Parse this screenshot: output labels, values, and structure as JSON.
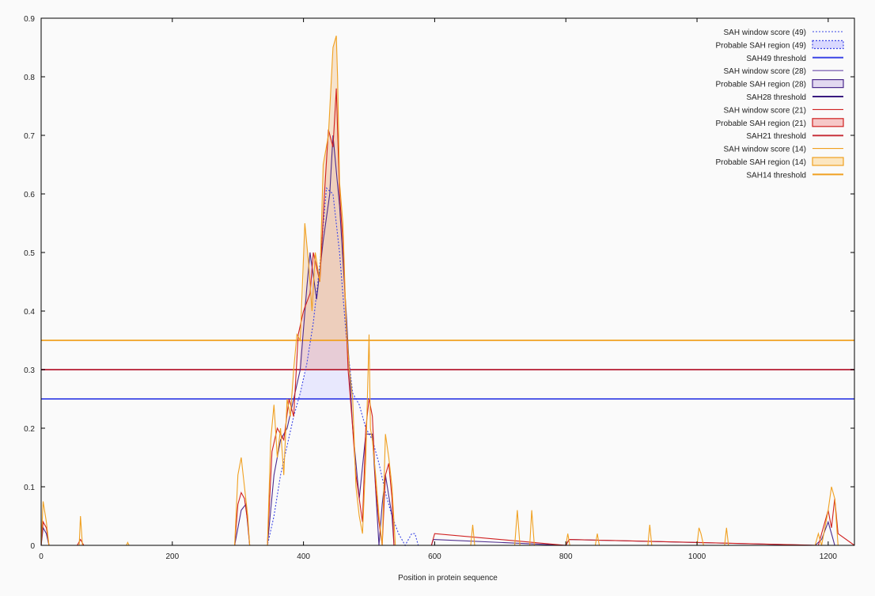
{
  "chart_data": {
    "type": "line",
    "xlabel": "Position in protein sequence",
    "ylabel": "",
    "xlim": [
      0,
      1240
    ],
    "ylim": [
      0,
      0.9
    ],
    "xticks": [
      0,
      200,
      400,
      600,
      800,
      1000,
      1200
    ],
    "yticks": [
      0,
      0.1,
      0.2,
      0.3,
      0.4,
      0.5,
      0.6,
      0.7,
      0.8,
      0.9
    ],
    "grid": false,
    "legend_position": "top-right",
    "thresholds": [
      {
        "name": "SAH49 threshold",
        "value": 0.25,
        "color": "#3b45e6"
      },
      {
        "name": "SAH28 threshold",
        "value": 0.3,
        "color": "#4b2a8c"
      },
      {
        "name": "SAH21 threshold",
        "value": 0.3,
        "color": "#c8323c"
      },
      {
        "name": "SAH14 threshold",
        "value": 0.35,
        "color": "#f0a020"
      }
    ],
    "regions": [
      {
        "name": "Probable SAH region (49)",
        "x": [
          388,
          479
        ],
        "color": "#d9d8ff"
      },
      {
        "name": "Probable SAH region (28)",
        "x": [
          392,
          474
        ],
        "color": "#d2c6e8"
      },
      {
        "name": "Probable SAH region (21)",
        "x": [
          394,
          472
        ],
        "color": "#f0c4c0"
      },
      {
        "name": "Probable SAH region (14)",
        "x": [
          400,
          466
        ],
        "color": "#f2cfa8"
      }
    ],
    "series": [
      {
        "name": "SAH window score (49)",
        "color": "#3b45e6",
        "style": "dotted",
        "x": [
          0,
          345,
          355,
          365,
          375,
          385,
          395,
          405,
          415,
          425,
          435,
          445,
          455,
          465,
          475,
          485,
          495,
          505,
          515,
          525,
          535,
          545,
          555,
          565,
          570,
          575,
          1240
        ],
        "y": [
          0,
          0,
          0.05,
          0.12,
          0.17,
          0.22,
          0.26,
          0.31,
          0.38,
          0.48,
          0.61,
          0.6,
          0.5,
          0.36,
          0.26,
          0.24,
          0.2,
          0.18,
          0.14,
          0.09,
          0.05,
          0.02,
          0,
          0.02,
          0.02,
          0,
          0
        ]
      },
      {
        "name": "SAH window score (28)",
        "color": "#4b2a8c",
        "style": "solid",
        "x": [
          0,
          3,
          8,
          12,
          295,
          305,
          312,
          318,
          345,
          355,
          365,
          375,
          385,
          395,
          405,
          410,
          420,
          430,
          440,
          445,
          455,
          465,
          475,
          485,
          495,
          505,
          515,
          520,
          525,
          535,
          538,
          595,
          598,
          800,
          805,
          1180,
          1190,
          1200,
          1205,
          1210,
          1240
        ],
        "y": [
          0,
          0.03,
          0.02,
          0,
          0,
          0.06,
          0.07,
          0,
          0,
          0.12,
          0.18,
          0.2,
          0.25,
          0.3,
          0.44,
          0.5,
          0.42,
          0.52,
          0.6,
          0.7,
          0.58,
          0.4,
          0.2,
          0.08,
          0.19,
          0.19,
          0,
          0.07,
          0.12,
          0.05,
          0,
          0,
          0.01,
          0,
          0.01,
          0,
          0.01,
          0.04,
          0.02,
          0,
          0
        ]
      },
      {
        "name": "SAH window score (21)",
        "color": "#d02020",
        "style": "solid",
        "x": [
          0,
          3,
          8,
          12,
          55,
          60,
          65,
          295,
          300,
          305,
          310,
          315,
          318,
          345,
          352,
          360,
          370,
          378,
          385,
          392,
          400,
          410,
          415,
          425,
          432,
          438,
          445,
          450,
          455,
          460,
          468,
          475,
          480,
          490,
          495,
          500,
          505,
          510,
          515,
          520,
          525,
          530,
          535,
          538,
          595,
          600,
          800,
          805,
          1185,
          1190,
          1195,
          1200,
          1205,
          1210,
          1215,
          1240
        ],
        "y": [
          0,
          0.04,
          0.03,
          0,
          0,
          0.01,
          0,
          0,
          0.07,
          0.09,
          0.08,
          0.04,
          0,
          0,
          0.16,
          0.2,
          0.18,
          0.25,
          0.22,
          0.36,
          0.4,
          0.43,
          0.5,
          0.45,
          0.6,
          0.71,
          0.68,
          0.78,
          0.6,
          0.52,
          0.3,
          0.2,
          0.12,
          0.04,
          0.2,
          0.25,
          0.22,
          0.1,
          0.04,
          0,
          0.12,
          0.14,
          0.08,
          0,
          0,
          0.02,
          0,
          0.01,
          0,
          0.02,
          0.04,
          0.06,
          0.03,
          0.08,
          0.02,
          0
        ]
      },
      {
        "name": "SAH window score (14)",
        "color": "#f0a020",
        "style": "solid",
        "x": [
          0,
          3,
          8,
          12,
          58,
          60,
          63,
          130,
          132,
          134,
          295,
          300,
          305,
          310,
          315,
          318,
          345,
          350,
          355,
          360,
          365,
          370,
          375,
          380,
          385,
          390,
          395,
          402,
          408,
          413,
          418,
          425,
          430,
          438,
          445,
          450,
          452,
          455,
          460,
          465,
          470,
          475,
          480,
          485,
          490,
          495,
          500,
          502,
          505,
          510,
          515,
          520,
          525,
          530,
          535,
          540,
          655,
          658,
          661,
          722,
          726,
          730,
          745,
          748,
          752,
          800,
          803,
          806,
          845,
          848,
          851,
          925,
          928,
          931,
          1000,
          1003,
          1006,
          1010,
          1042,
          1045,
          1048,
          1180,
          1185,
          1190,
          1195,
          1200,
          1205,
          1210,
          1215,
          1240
        ],
        "y": [
          0,
          0.075,
          0.04,
          0,
          0,
          0.05,
          0,
          0,
          0.005,
          0,
          0,
          0.12,
          0.15,
          0.1,
          0.05,
          0,
          0,
          0.18,
          0.24,
          0.15,
          0.2,
          0.12,
          0.25,
          0.22,
          0.3,
          0.36,
          0.35,
          0.55,
          0.48,
          0.4,
          0.5,
          0.45,
          0.65,
          0.7,
          0.85,
          0.87,
          0.8,
          0.62,
          0.55,
          0.38,
          0.3,
          0.25,
          0.1,
          0.05,
          0.02,
          0.15,
          0.36,
          0.2,
          0.18,
          0.12,
          0.05,
          0,
          0.19,
          0.15,
          0.1,
          0,
          0,
          0.035,
          0,
          0,
          0.06,
          0,
          0,
          0.06,
          0,
          0,
          0.02,
          0,
          0,
          0.02,
          0,
          0,
          0.035,
          0,
          0,
          0.03,
          0.02,
          0,
          0,
          0.03,
          0,
          0,
          0.02,
          0,
          0.03,
          0.06,
          0.1,
          0.08,
          0,
          0
        ]
      }
    ],
    "legend": [
      {
        "label": "SAH window score (49)",
        "kind": "line",
        "color": "#3b45e6",
        "style": "dotted"
      },
      {
        "label": "Probable SAH region (49)",
        "kind": "box",
        "color": "#3b45e6",
        "fill": "#d9d8ff",
        "style": "dotted"
      },
      {
        "label": "SAH49 threshold",
        "kind": "line",
        "color": "#3b45e6",
        "style": "thick"
      },
      {
        "label": "SAH window score (28)",
        "kind": "line",
        "color": "#6a4aa8",
        "style": "solid"
      },
      {
        "label": "Probable SAH region (28)",
        "kind": "box",
        "color": "#4b2a8c",
        "fill": "#e2d8f0",
        "style": "solid"
      },
      {
        "label": "SAH28 threshold",
        "kind": "line",
        "color": "#3a1a80",
        "style": "thick"
      },
      {
        "label": "SAH window score (21)",
        "kind": "line",
        "color": "#d02020",
        "style": "solid"
      },
      {
        "label": "Probable SAH region (21)",
        "kind": "box",
        "color": "#d02020",
        "fill": "#f6c8c8",
        "style": "solid"
      },
      {
        "label": "SAH21 threshold",
        "kind": "line",
        "color": "#c8323c",
        "style": "thick"
      },
      {
        "label": "SAH window score (14)",
        "kind": "line",
        "color": "#f0a020",
        "style": "solid"
      },
      {
        "label": "Probable SAH region (14)",
        "kind": "box",
        "color": "#f0a020",
        "fill": "#fce6c0",
        "style": "solid"
      },
      {
        "label": "SAH14 threshold",
        "kind": "line",
        "color": "#f0a020",
        "style": "thick"
      }
    ]
  }
}
